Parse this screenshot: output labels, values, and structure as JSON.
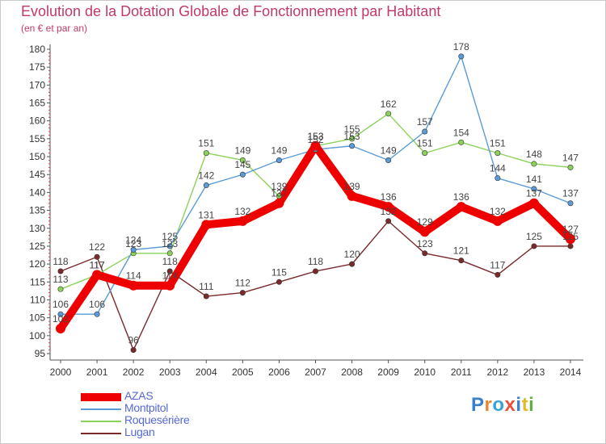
{
  "title": "Evolution de la Dotation Globale de Fonctionnement par Habitant",
  "subtitle": "(en € et par an)",
  "logo": {
    "text": "Proxiti",
    "letter_colors": [
      "#3a7fd0",
      "#e8872a",
      "#37a3d6",
      "#e94f3a",
      "#3a7fd0",
      "#e8b62a",
      "#5fb043"
    ]
  },
  "chart_data": {
    "type": "line",
    "title": "Evolution de la Dotation Globale de Fonctionnement par Habitant",
    "subtitle": "(en € et par an)",
    "xlabel": "",
    "ylabel": "",
    "categories": [
      "2000",
      "2001",
      "2002",
      "2003",
      "2004",
      "2005",
      "2006",
      "2007",
      "2008",
      "2009",
      "2010",
      "2011",
      "2012",
      "2013",
      "2014"
    ],
    "ylim": [
      95,
      180
    ],
    "ytick_step": 5,
    "grid": false,
    "legend_position": "bottom-left",
    "series": [
      {
        "name": "AZAS",
        "color": "#ee0000",
        "values": [
          102,
          117,
          114,
          114,
          131,
          132,
          137,
          153,
          139,
          136,
          129,
          136,
          132,
          137,
          127
        ]
      },
      {
        "name": "Montpitol",
        "color": "#5a9bd8",
        "values": [
          106,
          106,
          124,
          125,
          142,
          145,
          149,
          152,
          153,
          149,
          157,
          178,
          144,
          141,
          137
        ]
      },
      {
        "name": "Roquesérière",
        "color": "#8cd25a",
        "values": [
          113,
          117,
          123,
          123,
          151,
          149,
          139,
          153,
          155,
          162,
          151,
          154,
          151,
          148,
          147
        ]
      },
      {
        "name": "Lugan",
        "color": "#7a2a2a",
        "values": [
          118,
          122,
          96,
          118,
          111,
          112,
          115,
          118,
          120,
          132,
          123,
          121,
          117,
          125,
          125
        ]
      }
    ]
  }
}
